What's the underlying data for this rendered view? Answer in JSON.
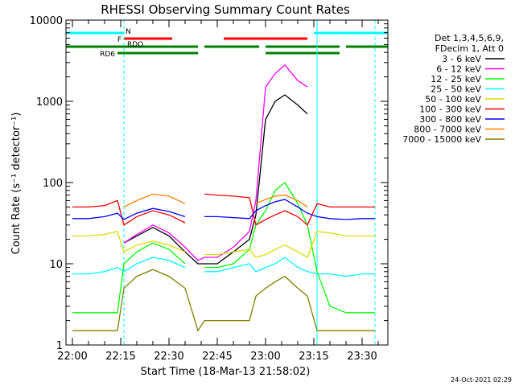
{
  "chart_data": {
    "type": "line",
    "title": "RHESSI Observing Summary Count Rates",
    "xlabel": "Start Time (18-Mar-13 21:58:02)",
    "ylabel": "Count Rate (s⁻¹ detector⁻¹)",
    "y_scale": "log",
    "ylim": [
      1,
      10000
    ],
    "xlim": [
      "21:58",
      "23:38"
    ],
    "x_ticks": [
      "22:00",
      "22:15",
      "22:30",
      "22:45",
      "23:00",
      "23:15",
      "23:30"
    ],
    "y_ticks": [
      "1",
      "10",
      "100",
      "1000",
      "10000"
    ],
    "legend_header": [
      "Det 1,3,4,5,6,9,",
      "FDecim 1, Att 0"
    ],
    "legend_position": "right",
    "grid": false,
    "x": [
      "22:00",
      "22:05",
      "22:10",
      "22:14",
      "22:16",
      "22:20",
      "22:25",
      "22:30",
      "22:35",
      "22:39",
      "22:41",
      "22:45",
      "22:50",
      "22:55",
      "22:57",
      "23:00",
      "23:03",
      "23:06",
      "23:10",
      "23:13",
      "23:16",
      "23:20",
      "23:25",
      "23:30",
      "23:34"
    ],
    "series": [
      {
        "name": "3 - 6 keV",
        "color": "#000000",
        "values": [
          null,
          null,
          null,
          null,
          18,
          22,
          28,
          22,
          14,
          10,
          10,
          10,
          14,
          20,
          40,
          600,
          1000,
          1200,
          900,
          700,
          null,
          null,
          null,
          null,
          null
        ]
      },
      {
        "name": "6 - 12 keV",
        "color": "#ff00ff",
        "values": [
          null,
          null,
          null,
          null,
          18,
          23,
          30,
          24,
          16,
          11,
          12,
          12,
          16,
          25,
          60,
          1500,
          2200,
          2800,
          1800,
          1500,
          null,
          null,
          null,
          null,
          null
        ]
      },
      {
        "name": "12 - 25 keV",
        "color": "#00ff00",
        "values": [
          2.5,
          2.5,
          2.5,
          2.5,
          10,
          14,
          18,
          15,
          10,
          null,
          9,
          9,
          10,
          15,
          30,
          45,
          80,
          100,
          55,
          30,
          8,
          3,
          2.5,
          2.5,
          2.5
        ]
      },
      {
        "name": "25 - 50 keV",
        "color": "#00ffff",
        "values": [
          7.5,
          7.5,
          8,
          9,
          8,
          10,
          12,
          11,
          9,
          null,
          8,
          8,
          9,
          10,
          8,
          9,
          10,
          12,
          9,
          8,
          7.5,
          7.5,
          7,
          7.5,
          7.5
        ]
      },
      {
        "name": "50 - 100 keV",
        "color": "#dcdc00",
        "values": [
          22,
          22,
          23,
          25,
          14,
          17,
          19,
          17,
          14,
          null,
          13,
          13,
          14,
          15,
          12,
          13,
          15,
          17,
          14,
          12,
          25,
          24,
          22,
          22,
          22
        ]
      },
      {
        "name": "100 - 300 keV",
        "color": "#ff0000",
        "values": [
          50,
          50,
          52,
          60,
          30,
          38,
          45,
          40,
          32,
          null,
          72,
          70,
          68,
          65,
          30,
          35,
          40,
          45,
          38,
          30,
          55,
          50,
          50,
          50,
          50
        ]
      },
      {
        "name": "300 - 800 keV",
        "color": "#0000ff",
        "values": [
          36,
          36,
          38,
          42,
          35,
          42,
          48,
          44,
          38,
          null,
          38,
          38,
          37,
          36,
          45,
          52,
          58,
          62,
          50,
          42,
          38,
          36,
          35,
          36,
          36
        ]
      },
      {
        "name": "800 - 7000 keV",
        "color": "#ff8000",
        "values": [
          null,
          null,
          null,
          null,
          50,
          60,
          72,
          68,
          55,
          null,
          null,
          null,
          null,
          null,
          55,
          62,
          68,
          70,
          60,
          50,
          null,
          null,
          null,
          null,
          null
        ]
      },
      {
        "name": "7000 - 15000 keV",
        "color": "#808000",
        "values": [
          1.5,
          1.5,
          1.5,
          1.5,
          5,
          7,
          8.5,
          7,
          5,
          1.5,
          2,
          2,
          2,
          2,
          4,
          5,
          6,
          7,
          5,
          4,
          1.5,
          1.5,
          1.5,
          1.5,
          1.5
        ]
      }
    ],
    "flag_bars": [
      {
        "label": "N",
        "color": "#00ffff",
        "segments": [
          [
            "21:58",
            "22:16"
          ],
          [
            "23:15",
            "23:38"
          ]
        ]
      },
      {
        "label": "F",
        "color": "#ff0000",
        "segments": [
          [
            "22:16",
            "22:31"
          ],
          [
            "22:47",
            "23:13"
          ]
        ]
      },
      {
        "label": "RDO",
        "color": "#008000",
        "segments": [
          [
            "21:58",
            "22:39"
          ],
          [
            "22:41",
            "22:58"
          ],
          [
            "23:00",
            "23:23"
          ],
          [
            "23:25",
            "23:38"
          ]
        ]
      },
      {
        "label": "RD6",
        "color": "#008000",
        "segments": [
          [
            "22:14",
            "22:39"
          ],
          [
            "23:00",
            "23:23"
          ]
        ]
      }
    ],
    "vertical_lines": [
      {
        "color": "#00ffff",
        "style": "dashed",
        "x": "22:16"
      },
      {
        "color": "#00ffff",
        "style": "solid",
        "x": "23:16"
      },
      {
        "color": "#00ffff",
        "style": "dashed",
        "x": "23:34"
      },
      {
        "color": "#00ffff",
        "style": "solid",
        "x": "21:58"
      }
    ],
    "footer_date": "24-Oct-2021 02:29"
  }
}
